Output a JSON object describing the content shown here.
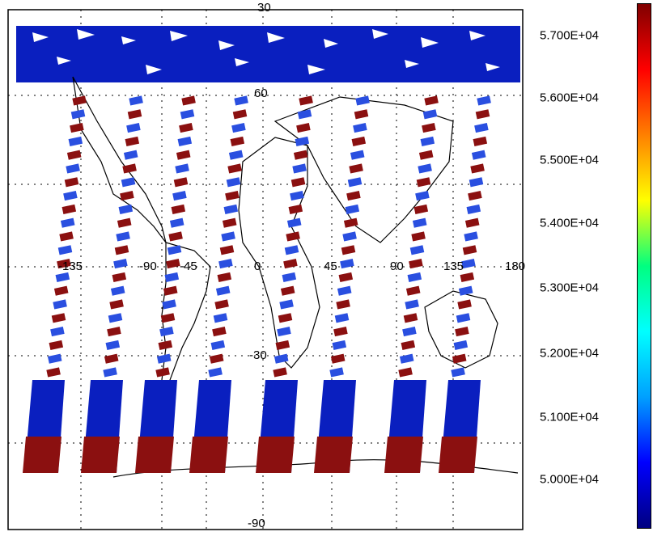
{
  "map": {
    "top_label": "30",
    "grid_labels": {
      "lon": [
        "-135",
        "-90",
        "-45",
        "0",
        "45",
        "90",
        "135",
        "180"
      ],
      "lat_equator": "0",
      "lat_south_mid": "-30",
      "lat_south_pole": "-90",
      "lat_north_mid": "60"
    }
  },
  "colorbar": {
    "labels": [
      "5.700E+04",
      "5.600E+04",
      "5.500E+04",
      "5.400E+04",
      "5.300E+04",
      "5.200E+04",
      "5.100E+04",
      "5.000E+04"
    ],
    "range": [
      49500,
      57300
    ],
    "colors": [
      "#000080",
      "#0000ff",
      "#00a0ff",
      "#00ffff",
      "#00ff80",
      "#ffff00",
      "#ff8000",
      "#ff0000",
      "#800000"
    ]
  },
  "palette": {
    "low": "#0a1fbf",
    "mid": "#2a4fe0",
    "high": "#8b1010"
  }
}
